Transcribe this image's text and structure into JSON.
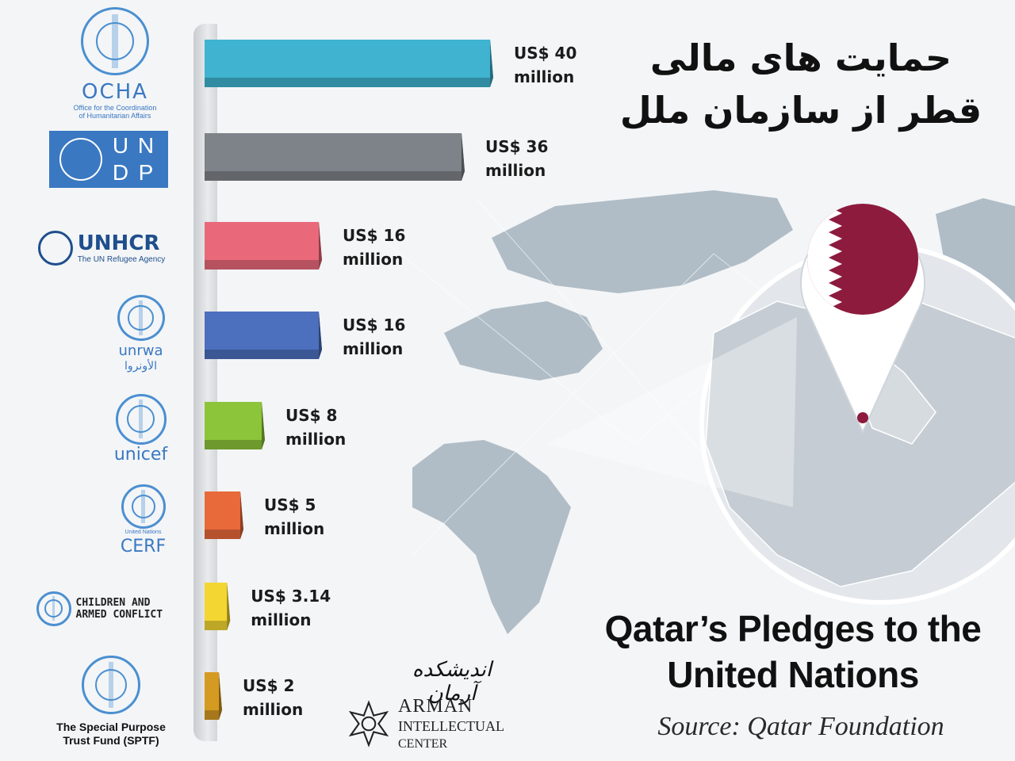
{
  "title_fa": "حمایت های مالی قطر از سازمان ملل",
  "title_en": "Qatar’s Pledges to the United Nations",
  "source": "Source: Qatar Foundation",
  "arman": {
    "fa": "اندیشکده آرمان",
    "line1": "ARMAN",
    "line2": "INTELLECTUAL",
    "line3": "CENTER"
  },
  "logos": [
    {
      "icon": "un-emblem-icon",
      "name": "OCHA",
      "sub": "Office for the Coordination of Humanitarian Affairs"
    },
    {
      "icon": "un-emblem-icon",
      "name": "UNDP",
      "letters": [
        "U",
        "N",
        "D",
        "P"
      ]
    },
    {
      "icon": "family-icon",
      "name": "UNHCR",
      "sub": "The UN Refugee Agency"
    },
    {
      "icon": "un-emblem-icon",
      "name": "unrwa",
      "sub": "الأونروا"
    },
    {
      "icon": "mother-child-icon",
      "name": "unicef"
    },
    {
      "icon": "un-emblem-icon",
      "name": "CERF",
      "sub": "United Nations"
    },
    {
      "icon": "un-emblem-icon",
      "name": "CHILDREN AND ARMED CONFLICT"
    },
    {
      "icon": "un-emblem-icon",
      "name": "The Special Purpose Trust Fund (SPTF)"
    }
  ],
  "chart_data": {
    "type": "bar",
    "orientation": "horizontal",
    "title": "Qatar’s Pledges to the United Nations",
    "categories": [
      "OCHA",
      "UNDP",
      "UNHCR",
      "UNRWA",
      "UNICEF",
      "CERF",
      "Children and Armed Conflict",
      "SPTF"
    ],
    "values": [
      40,
      36,
      16,
      16,
      8,
      5,
      3.14,
      2
    ],
    "labels": [
      "US$ 40 million",
      "US$ 36 million",
      "US$ 16 million",
      "US$ 16 million",
      "US$ 8 million",
      "US$ 5 million",
      "US$ 3.14 million",
      "US$ 2 million"
    ],
    "unit": "million US$",
    "colors": [
      "#3fb3cf",
      "#7d8388",
      "#e9697a",
      "#4c6fbe",
      "#8cc43a",
      "#e8693a",
      "#f3d632",
      "#d59a22"
    ],
    "xlim": [
      0,
      40
    ]
  }
}
